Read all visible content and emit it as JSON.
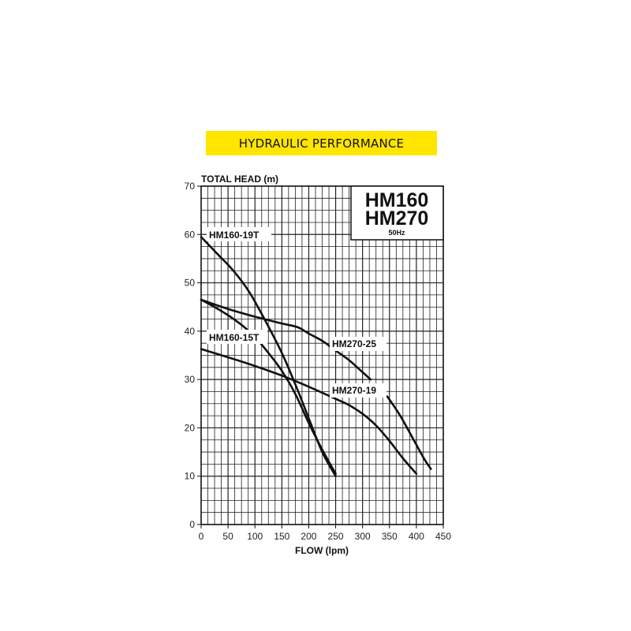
{
  "banner": {
    "title": "HYDRAULIC PERFORMANCE"
  },
  "model_box": {
    "line1": "HM160",
    "line2": "HM270",
    "frequency": "50Hz"
  },
  "chart_data": {
    "type": "line",
    "title": "HYDRAULIC PERFORMANCE",
    "xlabel": "FLOW (lpm)",
    "ylabel": "TOTAL HEAD (m)",
    "xlim": [
      0,
      450
    ],
    "ylim": [
      0,
      70
    ],
    "x_major_ticks": [
      0,
      50,
      100,
      150,
      200,
      250,
      300,
      350,
      400,
      450
    ],
    "y_major_ticks": [
      0,
      10,
      20,
      30,
      40,
      50,
      60,
      70
    ],
    "x_minor_step": 12.5,
    "y_minor_step": 2.5,
    "grid": true,
    "series": [
      {
        "name": "HM160-19T",
        "x": [
          0,
          30,
          60,
          90,
          120,
          150,
          175,
          200,
          225,
          250
        ],
        "y": [
          59.5,
          56,
          52.5,
          48,
          42,
          35.5,
          29,
          22,
          15,
          10
        ]
      },
      {
        "name": "HM160-15T",
        "x": [
          0,
          25,
          50,
          75,
          100,
          125,
          150,
          175,
          200,
          225,
          250
        ],
        "y": [
          46.5,
          45,
          43.3,
          41.3,
          38.8,
          35.5,
          31.8,
          27,
          21,
          15.5,
          10.5
        ]
      },
      {
        "name": "HM270-25",
        "x": [
          0,
          50,
          100,
          150,
          180,
          200,
          225,
          250,
          275,
          300,
          315
        ],
        "y": [
          46.5,
          44.6,
          43,
          41.6,
          40.8,
          39.5,
          38,
          36,
          34,
          31.5,
          30
        ]
      },
      {
        "name": "HM270-19",
        "x": [
          0,
          50,
          100,
          150,
          200,
          250,
          275,
          300,
          325,
          350,
          375,
          400
        ],
        "y": [
          36.3,
          34.6,
          32.8,
          30.8,
          28.5,
          26,
          24.7,
          22.9,
          20.5,
          17.3,
          13.7,
          10.5
        ]
      },
      {
        "name": "HM270-25",
        "x": [
          346,
          370,
          395,
          415,
          427
        ],
        "y": [
          26.5,
          22.5,
          17.5,
          13.5,
          11.5
        ]
      }
    ],
    "annotations": [
      "HM160-19T",
      "HM160-15T",
      "HM270-25",
      "HM270-19"
    ]
  }
}
